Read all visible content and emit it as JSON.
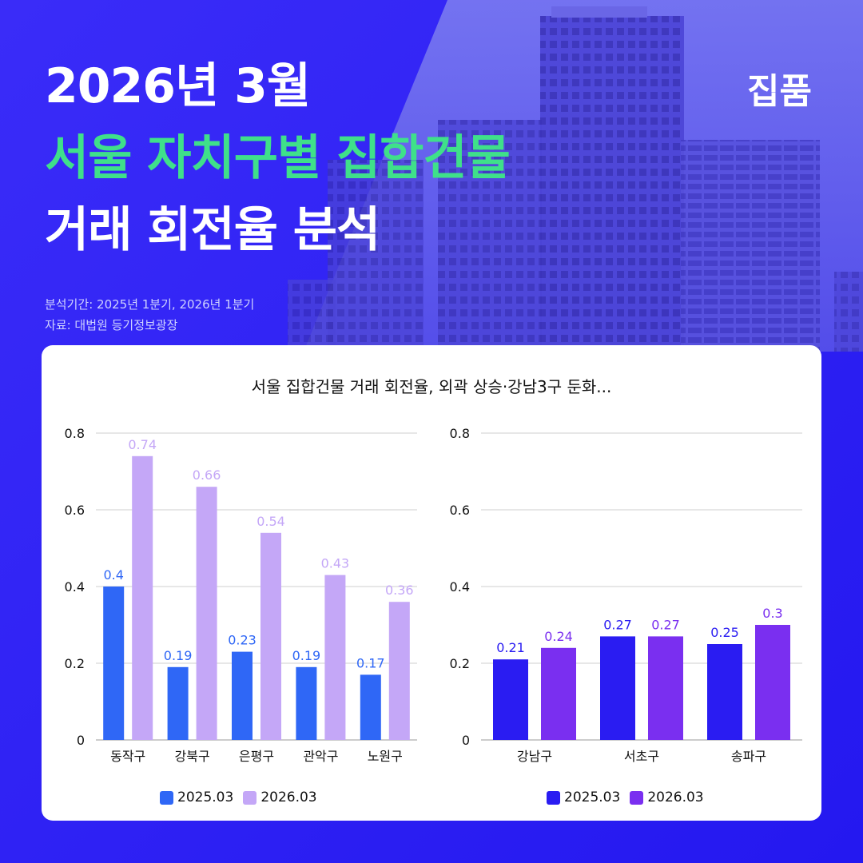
{
  "brand": "집품",
  "headline": {
    "line1": "2026년 3월",
    "line2": "서울 자치구별 집합건물",
    "line3": "거래 회전율 분석"
  },
  "meta": {
    "period": "분석기간: 2025년 1분기, 2026년 1분기",
    "source": "자료: 대법원 등기정보광장"
  },
  "colors": {
    "background": "#2b1ff5",
    "accent_green": "#3fe08a",
    "left_2025": "#2f67f6",
    "left_2026": "#c4a7f7",
    "right_2025": "#2a1cf2",
    "right_2026": "#7a2ff0"
  },
  "chart_data": [
    {
      "type": "bar",
      "title": "서울 집합건물 거래 회전율, 외곽 상승·강남3구 둔화...",
      "categories": [
        "동작구",
        "강북구",
        "은평구",
        "관악구",
        "노원구"
      ],
      "series": [
        {
          "name": "2025.03",
          "values": [
            0.4,
            0.19,
            0.23,
            0.19,
            0.17
          ],
          "color": "#2f67f6"
        },
        {
          "name": "2026.03",
          "values": [
            0.74,
            0.66,
            0.54,
            0.43,
            0.36
          ],
          "color": "#c4a7f7"
        }
      ],
      "ylim": [
        0,
        0.8
      ],
      "yticks": [
        "0",
        "0.2",
        "0.4",
        "0.6",
        "0.8"
      ],
      "grid": true,
      "legend": "bottom"
    },
    {
      "type": "bar",
      "categories": [
        "강남구",
        "서초구",
        "송파구"
      ],
      "series": [
        {
          "name": "2025.03",
          "values": [
            0.21,
            0.27,
            0.25
          ],
          "color": "#2a1cf2"
        },
        {
          "name": "2026.03",
          "values": [
            0.24,
            0.27,
            0.3
          ],
          "color": "#7a2ff0"
        }
      ],
      "ylim": [
        0,
        0.8
      ],
      "yticks": [
        "0",
        "0.2",
        "0.4",
        "0.6",
        "0.8"
      ],
      "grid": true,
      "legend": "bottom"
    }
  ]
}
